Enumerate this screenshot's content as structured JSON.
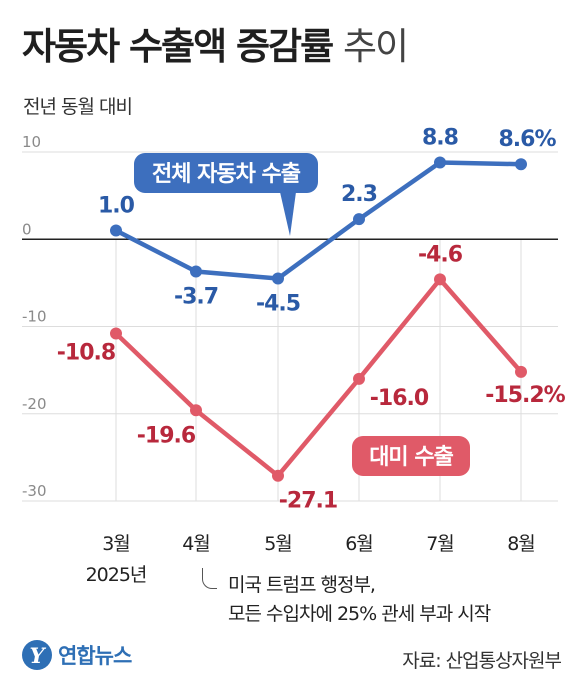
{
  "header": {
    "title": "자동차 수출액 증감률",
    "title_light": "추이",
    "subtitle": "전년 동월 대비"
  },
  "chart_data": {
    "type": "line",
    "categories": [
      "3월",
      "4월",
      "5월",
      "6월",
      "7월",
      "8월"
    ],
    "year_label": "2025년",
    "ylim": [
      -30,
      10
    ],
    "yticks": [
      10,
      0,
      -10,
      -20,
      -30
    ],
    "series": [
      {
        "name": "전체 자동차 수출",
        "color": "#3d6fbe",
        "label_color": "#2a5aa6",
        "values": [
          1.0,
          -3.7,
          -4.5,
          2.3,
          8.8,
          8.6
        ],
        "labels": [
          "1.0",
          "-3.7",
          "-4.5",
          "2.3",
          "8.8",
          "8.6%"
        ]
      },
      {
        "name": "대미 수출",
        "color": "#e05a68",
        "label_color": "#b8283c",
        "values": [
          -10.8,
          -19.6,
          -27.1,
          -16.0,
          -4.6,
          -15.2
        ],
        "labels": [
          "-10.8",
          "-19.6",
          "-27.1",
          "-16.0",
          "-4.6",
          "-15.2%"
        ]
      }
    ],
    "legend_badges": [
      "전체 자동차 수출",
      "대미 수출"
    ],
    "annotation": {
      "lines": [
        "미국 트럼프 행정부,",
        "모든 수입차에 25% 관세 부과 시작"
      ]
    }
  },
  "footer": {
    "logo_text": "연합뉴스",
    "source": "자료: 산업통상자원부"
  },
  "colors": {
    "grid": "#dddddd",
    "zero_line": "#222222",
    "axis_text": "#555555"
  }
}
